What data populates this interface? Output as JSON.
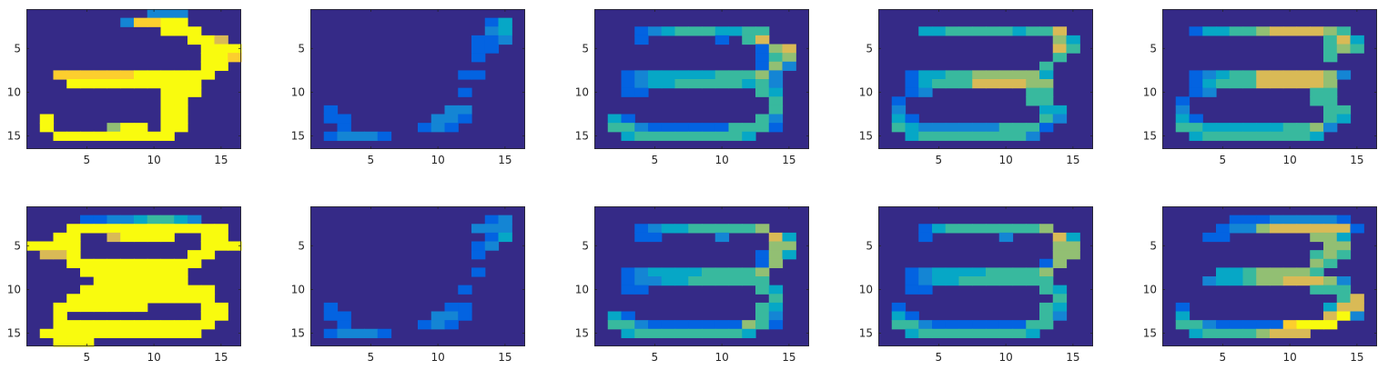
{
  "figure": {
    "rows": 2,
    "cols": 5,
    "colormap": [
      "#352a87",
      "#0363e1",
      "#1485d4",
      "#06a7c6",
      "#38b99e",
      "#92bf73",
      "#d9ba56",
      "#fcce2e",
      "#f9fb0e"
    ],
    "background": "#ffffff"
  },
  "chart_data": [
    {
      "type": "heatmap",
      "shape": [
        16,
        16
      ],
      "xlim": [
        0.5,
        16.5
      ],
      "ylim": [
        0.5,
        16.5
      ],
      "xticks": [
        5,
        10,
        15
      ],
      "yticks": [
        5,
        10,
        15
      ],
      "grid": false,
      "clim": [
        0,
        1
      ],
      "rows_data": [
        "0000000002220000",
        "0000000277990000",
        "0000000000999000",
        "0000000000009960",
        "0000000000000999",
        "0000000000000997",
        "0000000000000990",
        "0077777799999900",
        "0009999999999000",
        "0000000000999000",
        "0000000000990000",
        "0000000000990000",
        "0900000000990000",
        "0900005990990000",
        "0099999999900000",
        "0000000000000000"
      ]
    },
    {
      "type": "heatmap",
      "shape": [
        16,
        16
      ],
      "xlim": [
        0.5,
        16.5
      ],
      "ylim": [
        0.5,
        16.5
      ],
      "xticks": [
        5,
        10,
        15
      ],
      "yticks": [
        5,
        10,
        15
      ],
      "grid": false,
      "clim": [
        0,
        1
      ],
      "rows_data": [
        "0000000000000000",
        "0000000000000130",
        "0000000000000230",
        "0000000000001120",
        "0000000000001100",
        "0000000000001000",
        "0000000000000000",
        "0000000000011000",
        "0000000000000000",
        "0000000000010000",
        "0000000000000000",
        "0100000000220000",
        "0110000002210000",
        "0010000012100000",
        "0122210000000000",
        "0000000000000000"
      ]
    },
    {
      "type": "heatmap",
      "shape": [
        16,
        16
      ],
      "xlim": [
        0.5,
        16.5
      ],
      "ylim": [
        0.5,
        16.5
      ],
      "xticks": [
        5,
        10,
        15
      ],
      "yticks": [
        5,
        10,
        15
      ],
      "grid": false,
      "clim": [
        0,
        1
      ],
      "rows_data": [
        "0000000000000000",
        "0000000000000000",
        "0001234443344000",
        "0001000001046000",
        "0000000000001560",
        "0000000000001450",
        "0000000000001520",
        "0012333334445200",
        "0012334444434200",
        "0011000000004300",
        "0000000000000400",
        "0000000000000400",
        "0310000000004200",
        "0442111111444100",
        "0034444444430000",
        "0000000000000000"
      ]
    },
    {
      "type": "heatmap",
      "shape": [
        16,
        16
      ],
      "xlim": [
        0.5,
        16.5
      ],
      "ylim": [
        0.5,
        16.5
      ],
      "xticks": [
        5,
        10,
        15
      ],
      "yticks": [
        5,
        10,
        15
      ],
      "grid": false,
      "clim": [
        0,
        1
      ],
      "rows_data": [
        "0000000000000000",
        "0000000000000000",
        "0003344444344600",
        "0000000000000530",
        "0000000000000640",
        "0000000000000400",
        "0000000000004000",
        "0013344555553000",
        "0013444666655000",
        "0012000000044000",
        "0100000000044000",
        "0200000000003300",
        "0310000000004200",
        "0432222224441000",
        "0034444444420000",
        "0000000000000000"
      ]
    },
    {
      "type": "heatmap",
      "shape": [
        16,
        16
      ],
      "xlim": [
        0.5,
        16.5
      ],
      "ylim": [
        0.5,
        16.5
      ],
      "xticks": [
        5,
        10,
        15
      ],
      "yticks": [
        5,
        10,
        15
      ],
      "grid": false,
      "clim": [
        0,
        1
      ],
      "rows_data": [
        "0000000000000000",
        "0000000000000000",
        "0013344566665400",
        "0000000000004630",
        "0000000000004540",
        "0000000000004000",
        "0000000000000000",
        "0012344666665200",
        "0013444666665000",
        "0012000000044000",
        "0100000000044000",
        "0200000000004400",
        "0310000000004300",
        "0443333334452000",
        "0034444444430000",
        "0000000000000000"
      ]
    },
    {
      "type": "heatmap",
      "shape": [
        16,
        16
      ],
      "xlim": [
        0.5,
        16.5
      ],
      "ylim": [
        0.5,
        16.5
      ],
      "xticks": [
        5,
        10,
        15
      ],
      "yticks": [
        5,
        10,
        15
      ],
      "grid": false,
      "clim": [
        0,
        1
      ],
      "rows_data": [
        "0000000000000000",
        "0000112234432000",
        "0009999999999990",
        "0099006999900990",
        "9999000000000999",
        "0669000000009900",
        "0009999999999000",
        "0000999999990000",
        "0000099999990000",
        "0000999999999900",
        "0009999999999900",
        "0099999990000990",
        "0090000000000990",
        "0099999999999900",
        "0999999999999000",
        "0099900000000000"
      ]
    },
    {
      "type": "heatmap",
      "shape": [
        16,
        16
      ],
      "xlim": [
        0.5,
        16.5
      ],
      "ylim": [
        0.5,
        16.5
      ],
      "xticks": [
        5,
        10,
        15
      ],
      "yticks": [
        5,
        10,
        15
      ],
      "grid": false,
      "clim": [
        0,
        1
      ],
      "rows_data": [
        "0000000000000000",
        "0000000000000120",
        "0000000000002220",
        "0000000000000130",
        "0000000000001200",
        "0000000000001000",
        "0000000000000000",
        "0000000000001000",
        "0000000000000000",
        "0000000000010000",
        "0000000000000000",
        "0100000000110000",
        "0110000002210000",
        "0010000012100000",
        "0122210000000000",
        "0000000000000000"
      ]
    },
    {
      "type": "heatmap",
      "shape": [
        16,
        16
      ],
      "xlim": [
        0.5,
        16.5
      ],
      "ylim": [
        0.5,
        16.5
      ],
      "xticks": [
        5,
        10,
        15
      ],
      "yticks": [
        5,
        10,
        15
      ],
      "grid": false,
      "clim": [
        0,
        1
      ],
      "rows_data": [
        "0000000000000000",
        "0000000000000000",
        "0001233444445000",
        "0001100002000630",
        "0000000000000550",
        "0000000000001530",
        "0000000000001500",
        "0012333344445000",
        "0012233444444000",
        "0011000000004300",
        "0000000000000400",
        "0000000000004300",
        "0310000000004200",
        "0442111111154100",
        "0034444444430000",
        "0000000000000000"
      ]
    },
    {
      "type": "heatmap",
      "shape": [
        16,
        16
      ],
      "xlim": [
        0.5,
        16.5
      ],
      "ylim": [
        0.5,
        16.5
      ],
      "xticks": [
        5,
        10,
        15
      ],
      "yticks": [
        5,
        10,
        15
      ],
      "grid": false,
      "clim": [
        0,
        1
      ],
      "rows_data": [
        "0000000000000000",
        "0000000000000000",
        "0001344444445000",
        "0001000002000630",
        "0000000000000550",
        "0000000000000550",
        "0000000000001500",
        "0012333344445000",
        "0012334444444000",
        "0011000000004300",
        "0000000000000400",
        "0100000000004300",
        "0310000000004200",
        "0442111111144000",
        "0034444444430000",
        "0000000000000000"
      ]
    },
    {
      "type": "heatmap",
      "shape": [
        16,
        16
      ],
      "xlim": [
        0.5,
        16.5
      ],
      "ylim": [
        0.5,
        16.5
      ],
      "xticks": [
        5,
        10,
        15
      ],
      "yticks": [
        5,
        10,
        15
      ],
      "grid": false,
      "clim": [
        0,
        1
      ],
      "rows_data": [
        "0000000000000000",
        "0000011122222100",
        "0000122566666610",
        "0001100000055300",
        "0000000000005500",
        "0000000000045400",
        "0000000000054000",
        "0000334555540000",
        "0002334556665200",
        "0000000000044400",
        "0000000000000460",
        "0100000000003660",
        "0300000000006820",
        "0442111117889000",
        "0034444566600000",
        "0000000000000000"
      ]
    }
  ]
}
